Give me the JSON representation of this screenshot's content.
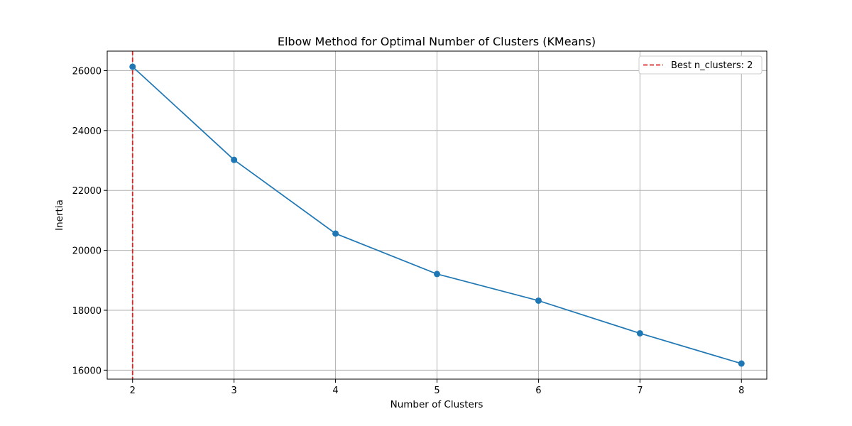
{
  "chart_data": {
    "type": "line",
    "title": "Elbow Method for Optimal Number of Clusters (KMeans)",
    "xlabel": "Number of Clusters",
    "ylabel": "Inertia",
    "x": [
      2,
      3,
      4,
      5,
      6,
      7,
      8
    ],
    "xlim": [
      1.75,
      8.25
    ],
    "ylim": [
      15700,
      26650
    ],
    "xticks": [
      2,
      3,
      4,
      5,
      6,
      7,
      8
    ],
    "yticks": [
      16000,
      18000,
      20000,
      22000,
      24000,
      26000
    ],
    "grid": true,
    "series": [
      {
        "values": [
          26130,
          23020,
          20560,
          19210,
          18320,
          17230,
          16220
        ],
        "color": "#1f77b4",
        "marker": "circle"
      }
    ],
    "reference_lines": [
      {
        "axis": "x",
        "value": 2,
        "style": "dashed",
        "color": "#d62728",
        "label": "Best n_clusters: 2"
      }
    ],
    "legend": {
      "position": "top-right",
      "entries": [
        "Best n_clusters: 2"
      ]
    }
  }
}
